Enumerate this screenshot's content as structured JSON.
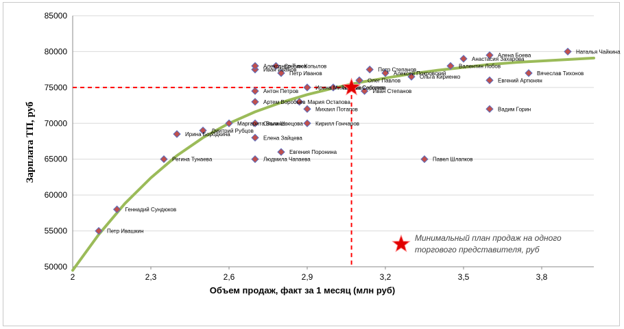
{
  "chart_data": {
    "type": "scatter",
    "xlabel": "Объем продаж, факт за 1 месяц (млн руб)",
    "ylabel": "Зарплата ТП, руб",
    "xlim": [
      2,
      4
    ],
    "ylim": [
      50000,
      85000
    ],
    "x_ticks": [
      2,
      2.3,
      2.6,
      2.9,
      3.2,
      3.5,
      3.8
    ],
    "x_tick_labels": [
      "2",
      "2,3",
      "2,6",
      "2,9",
      "3,2",
      "3,5",
      "3,8"
    ],
    "y_ticks": [
      50000,
      55000,
      60000,
      65000,
      70000,
      75000,
      80000,
      85000
    ],
    "y_tick_labels": [
      "50000",
      "55000",
      "60000",
      "65000",
      "70000",
      "75000",
      "80000",
      "85000"
    ],
    "grid": "horizontal",
    "colors": {
      "marker_fill": "#c0504d",
      "marker_stroke": "#5b6fbf",
      "trend": "#9bbb59",
      "plan": "#e00000",
      "guide": "#ff0000"
    },
    "points": [
      {
        "name": "Петр Ивашкин",
        "x": 2.1,
        "y": 55000
      },
      {
        "name": "Геннадий Сундюков",
        "x": 2.17,
        "y": 58000
      },
      {
        "name": "Регина Тунаева",
        "x": 2.35,
        "y": 65000
      },
      {
        "name": "Ирина Бородкина",
        "x": 2.4,
        "y": 68500
      },
      {
        "name": "Дмитрий Рубцов",
        "x": 2.5,
        "y": 69000
      },
      {
        "name": "Маргарита Волина",
        "x": 2.6,
        "y": 70000
      },
      {
        "name": "Ольга Швецова",
        "x": 2.7,
        "y": 70000
      },
      {
        "name": "Елена Зайцева",
        "x": 2.7,
        "y": 68000
      },
      {
        "name": "Людмила Чапаева",
        "x": 2.7,
        "y": 65000
      },
      {
        "name": "Артем Воробьев",
        "x": 2.7,
        "y": 73000
      },
      {
        "name": "Антон Петров",
        "x": 2.7,
        "y": 74500
      },
      {
        "name": "Иван Иванов",
        "x": 2.7,
        "y": 77500
      },
      {
        "name": "Александр Титов",
        "x": 2.7,
        "y": 78000
      },
      {
        "name": "Степан Копылов",
        "x": 2.78,
        "y": 78000
      },
      {
        "name": "Петр Иванов",
        "x": 2.8,
        "y": 77000
      },
      {
        "name": "Евгения Поронина",
        "x": 2.8,
        "y": 66000
      },
      {
        "name": "Мария Остапова",
        "x": 2.87,
        "y": 73000
      },
      {
        "name": "Ирина Михайлова",
        "x": 2.9,
        "y": 75000
      },
      {
        "name": "Михаил Потапов",
        "x": 2.9,
        "y": 72000
      },
      {
        "name": "Кирилл Гончаров",
        "x": 2.9,
        "y": 70000
      },
      {
        "name": "Тамара Сергеева",
        "x": 3.0,
        "y": 75000
      },
      {
        "name": "Олег Павлов",
        "x": 3.1,
        "y": 76000
      },
      {
        "name": "Соболев",
        "x": 3.08,
        "y": 75000
      },
      {
        "name": "Иван Степанов",
        "x": 3.12,
        "y": 74500
      },
      {
        "name": "Петр Степанов",
        "x": 3.14,
        "y": 77500
      },
      {
        "name": "Алексей Покровский",
        "x": 3.2,
        "y": 77000
      },
      {
        "name": "Павел Шлапков",
        "x": 3.35,
        "y": 65000
      },
      {
        "name": "Ольга Кириенко",
        "x": 3.3,
        "y": 76500
      },
      {
        "name": "Валентин Лобов",
        "x": 3.45,
        "y": 78000
      },
      {
        "name": "Анастасия Захарова",
        "x": 3.5,
        "y": 79000
      },
      {
        "name": "Алена Боева",
        "x": 3.6,
        "y": 79500
      },
      {
        "name": "Евгений Артюнян",
        "x": 3.6,
        "y": 76000
      },
      {
        "name": "Вадим Горин",
        "x": 3.6,
        "y": 72000
      },
      {
        "name": "Вячеслав Тихонов",
        "x": 3.75,
        "y": 77000
      },
      {
        "name": "Наталья Чайкина",
        "x": 3.9,
        "y": 80000
      }
    ],
    "trendline": {
      "type": "smooth",
      "x": [
        2.0,
        2.1,
        2.2,
        2.3,
        2.4,
        2.5,
        2.6,
        2.7,
        2.8,
        2.9,
        3.0,
        3.1,
        3.2,
        3.3,
        3.4,
        3.5,
        3.6,
        3.7,
        3.8,
        3.9,
        4.0
      ],
      "y": [
        49500,
        54500,
        58800,
        62400,
        65500,
        68000,
        70000,
        71600,
        72900,
        74000,
        74900,
        75700,
        76300,
        76900,
        77400,
        77800,
        78200,
        78500,
        78700,
        78900,
        79100
      ]
    },
    "plan_point": {
      "x": 3.07,
      "y": 75000
    },
    "legend": {
      "label": "Минимальный план продаж на одного торгового представителя, руб",
      "position": "bottom-right"
    }
  }
}
